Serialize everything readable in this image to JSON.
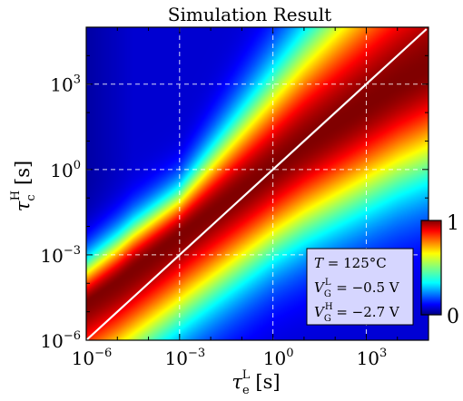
{
  "chart_data": {
    "type": "heatmap",
    "title": "Simulation Result",
    "xlabel": {
      "symbol": "τ",
      "sub": "e",
      "sup": "L",
      "unit": "[s]"
    },
    "ylabel": {
      "symbol": "τ",
      "sub": "c",
      "sup": "H",
      "unit": "[s]"
    },
    "x_scale": "log",
    "y_scale": "log",
    "xlim": [
      1e-06,
      100000.0
    ],
    "ylim": [
      1e-06,
      100000.0
    ],
    "x_ticks": [
      {
        "value": 1e-06,
        "base": "10",
        "exp": "−6"
      },
      {
        "value": 0.001,
        "base": "10",
        "exp": "−3"
      },
      {
        "value": 1,
        "label": "10",
        "exp": "0"
      },
      {
        "value": 1000.0,
        "base": "10",
        "exp": "3"
      }
    ],
    "y_ticks": [
      {
        "value": 1e-06,
        "base": "10",
        "exp": "−6"
      },
      {
        "value": 0.001,
        "base": "10",
        "exp": "−3"
      },
      {
        "value": 1,
        "base": "10",
        "exp": "0"
      },
      {
        "value": 1000.0,
        "base": "10",
        "exp": "3"
      }
    ],
    "grid": true,
    "diagonal_line": {
      "x": [
        1e-06,
        100000.0
      ],
      "y": [
        1e-06,
        100000.0
      ],
      "color": "#ffffff"
    },
    "colorbar": {
      "min": 0,
      "max": 1,
      "min_label": "0",
      "max_label": "1",
      "colormap": "jet"
    },
    "ridge": {
      "log_x_points": [
        -6,
        -5,
        -4,
        -3,
        -2,
        -1,
        0,
        1,
        2,
        3,
        4,
        5
      ],
      "log_y_points": [
        -4.6,
        -3.9,
        -3.1,
        -2.3,
        -1.5,
        -0.7,
        0.1,
        0.9,
        1.6,
        2.3,
        3.0,
        3.6
      ]
    },
    "annotation": {
      "lines": [
        {
          "symbol": "T",
          "sub": "",
          "sup": "",
          "value": " = 125°C"
        },
        {
          "symbol": "V",
          "sub": "G",
          "sup": "L",
          "value": " = −0.5 V"
        },
        {
          "symbol": "V",
          "sub": "G",
          "sup": "H",
          "value": " = −2.7 V"
        }
      ],
      "position": "bottom-right",
      "background": "#d6d6ff"
    }
  }
}
